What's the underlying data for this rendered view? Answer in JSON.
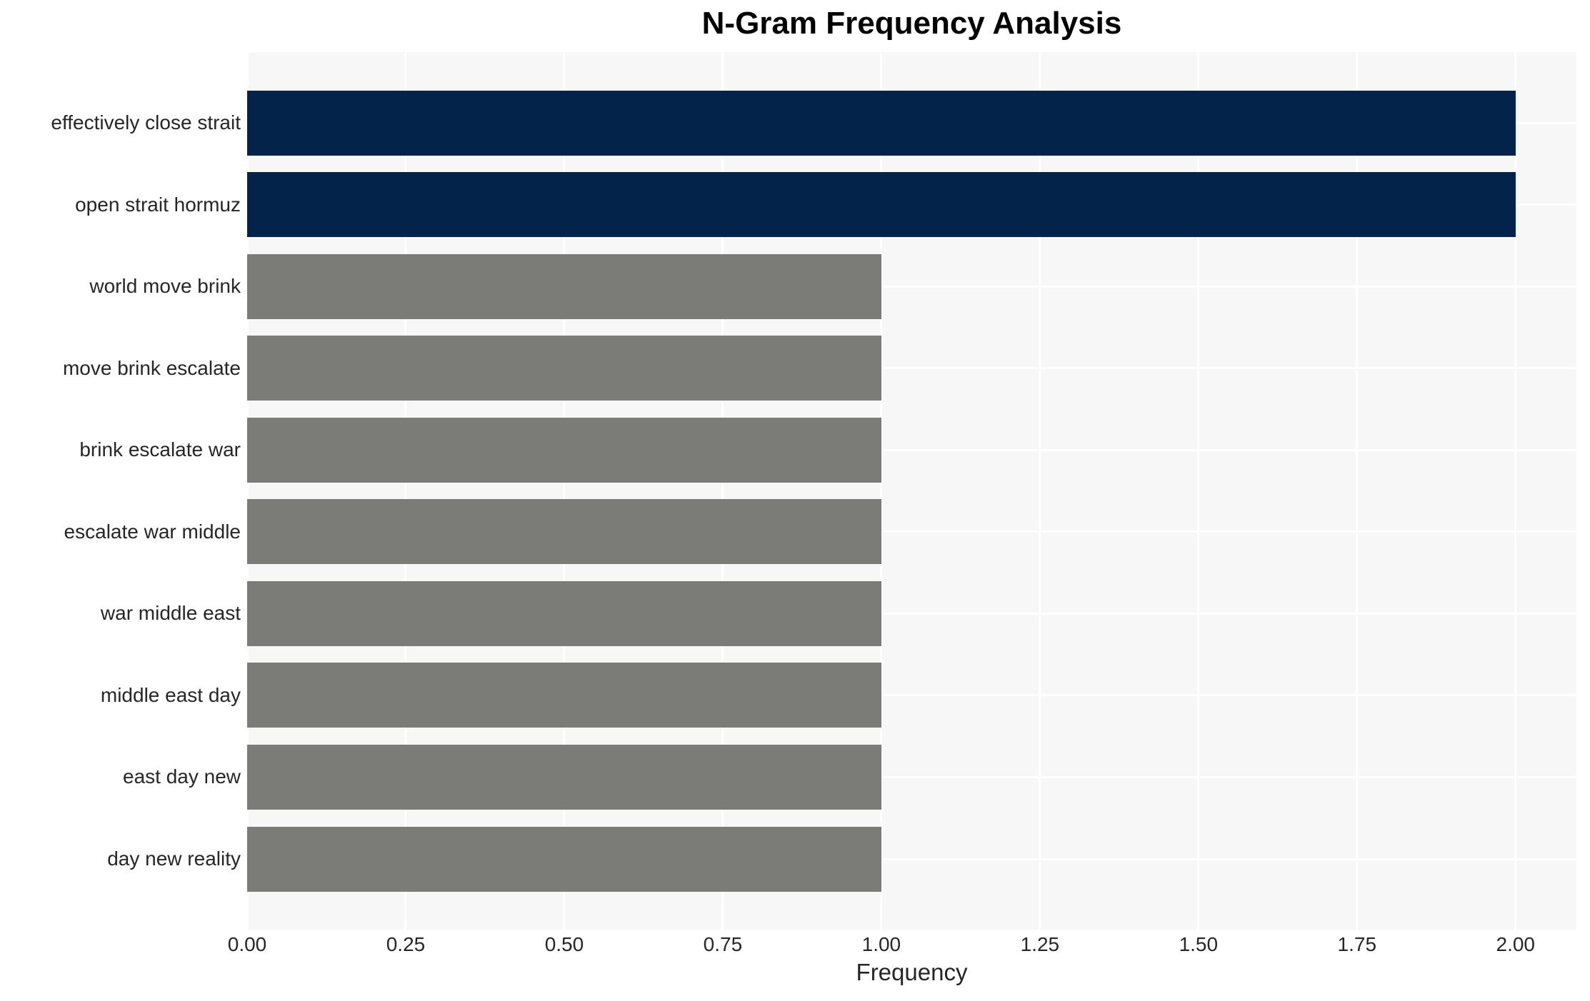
{
  "chart_data": {
    "type": "bar",
    "orientation": "horizontal",
    "title": "N-Gram Frequency Analysis",
    "xlabel": "Frequency",
    "ylabel": "",
    "categories": [
      "effectively close strait",
      "open strait hormuz",
      "world move brink",
      "move brink escalate",
      "brink escalate war",
      "escalate war middle",
      "war middle east",
      "middle east day",
      "east day new",
      "day new reality"
    ],
    "values": [
      2.0,
      2.0,
      1.0,
      1.0,
      1.0,
      1.0,
      1.0,
      1.0,
      1.0,
      1.0
    ],
    "bar_colors": [
      "#03234a",
      "#03234a",
      "#7b7b78",
      "#7b7b78",
      "#7b7b78",
      "#7b7b78",
      "#7b7b78",
      "#7b7b78",
      "#7b7b78",
      "#7b7b78"
    ],
    "xlim": [
      0,
      2.096
    ],
    "x_ticks": [
      "0.00",
      "0.25",
      "0.50",
      "0.75",
      "1.00",
      "1.25",
      "1.50",
      "1.75",
      "2.00"
    ],
    "grid": true,
    "legend_position": "none",
    "colors": {
      "plot_bg": "#f7f7f7",
      "grid_color": "#ffffff",
      "highlight_bar": "#03234a",
      "default_bar": "#7b7b78",
      "text": "#262626",
      "title_text": "#000000"
    }
  }
}
